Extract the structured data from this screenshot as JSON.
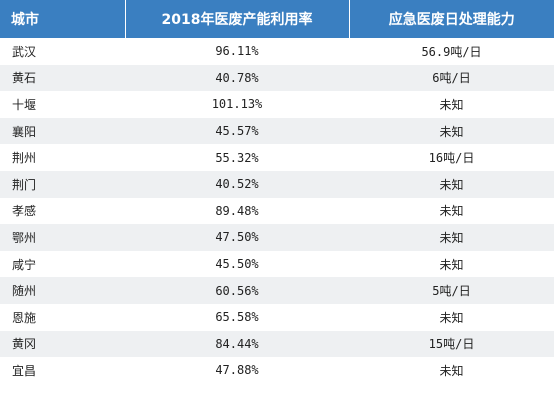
{
  "colors": {
    "header_bg": "#3a7fc1",
    "header_text": "#ffffff",
    "stripe_bg": "#eef0f2"
  },
  "table": {
    "headers": {
      "city": "城市",
      "rate": "2018年医废产能利用率",
      "capacity": "应急医废日处理能力"
    },
    "rows": [
      {
        "city": "武汉",
        "rate": "96.11%",
        "capacity": "56.9吨/日"
      },
      {
        "city": "黄石",
        "rate": "40.78%",
        "capacity": "6吨/日"
      },
      {
        "city": "十堰",
        "rate": "101.13%",
        "capacity": "未知"
      },
      {
        "city": "襄阳",
        "rate": "45.57%",
        "capacity": "未知"
      },
      {
        "city": "荆州",
        "rate": "55.32%",
        "capacity": "16吨/日"
      },
      {
        "city": "荆门",
        "rate": "40.52%",
        "capacity": "未知"
      },
      {
        "city": "孝感",
        "rate": "89.48%",
        "capacity": "未知"
      },
      {
        "city": "鄂州",
        "rate": "47.50%",
        "capacity": "未知"
      },
      {
        "city": "咸宁",
        "rate": "45.50%",
        "capacity": "未知"
      },
      {
        "city": "随州",
        "rate": "60.56%",
        "capacity": "5吨/日"
      },
      {
        "city": "恩施",
        "rate": "65.58%",
        "capacity": "未知"
      },
      {
        "city": "黄冈",
        "rate": "84.44%",
        "capacity": "15吨/日"
      },
      {
        "city": "宜昌",
        "rate": "47.88%",
        "capacity": "未知"
      }
    ]
  }
}
